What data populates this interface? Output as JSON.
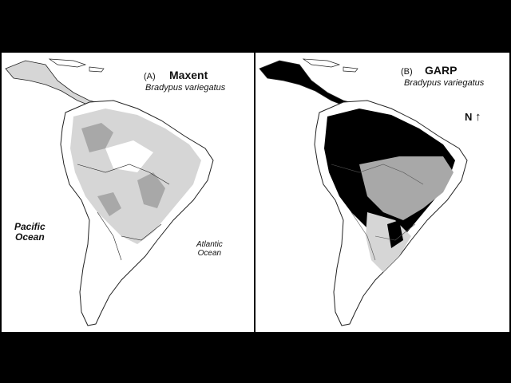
{
  "panels": [
    {
      "tag": "(A)",
      "model": "Maxent",
      "species": "Bradypus variegatus"
    },
    {
      "tag": "(B)",
      "model": "GARP",
      "species": "Bradypus variegatus"
    }
  ],
  "labels": {
    "pacific_line1": "Pacific",
    "pacific_line2": "Ocean",
    "atlantic_line1": "Atlantic",
    "atlantic_line2": "Ocean",
    "north": "N"
  },
  "colors": {
    "land": "#ffffff",
    "low": "#d6d6d6",
    "mid": "#a8a8a8",
    "high": "#000000",
    "border": "#222222"
  }
}
